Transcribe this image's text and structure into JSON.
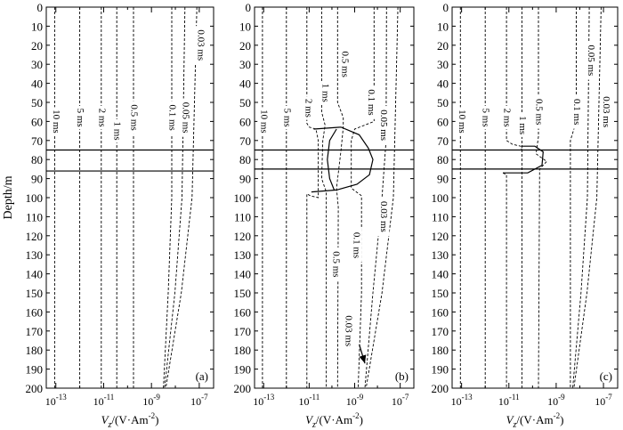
{
  "chart_data": {
    "y_axis": {
      "label": "Depth/m",
      "ylim": [
        0,
        200
      ],
      "inverted": true,
      "ticks": [
        0,
        10,
        20,
        30,
        40,
        50,
        60,
        70,
        80,
        90,
        100,
        110,
        120,
        130,
        140,
        150,
        160,
        170,
        180,
        190,
        200
      ]
    },
    "x_axis": {
      "label_main": "V",
      "label_sub": "z",
      "label_unit": "/(V·Am",
      "label_exp": "-2",
      "label_close": ")",
      "scale": "log",
      "xlim_exp": [
        -13.4,
        -6.4
      ],
      "tick_exps": [
        -13,
        -11,
        -9,
        -7
      ],
      "tick_base": "10"
    },
    "panels": [
      {
        "type": "line",
        "tag": "(a)",
        "layer_lines": [
          75,
          86
        ],
        "curves": [
          {
            "name": "10 ms",
            "style": "dashed",
            "points": [
              [
                -13.05,
                0
              ],
              [
                -13.05,
                200
              ]
            ]
          },
          {
            "name": "5 ms",
            "style": "dashed",
            "points": [
              [
                -12.0,
                0
              ],
              [
                -12.0,
                200
              ]
            ]
          },
          {
            "name": "2 ms",
            "style": "dashed",
            "points": [
              [
                -11.1,
                0
              ],
              [
                -11.1,
                200
              ]
            ]
          },
          {
            "name": "1 ms",
            "style": "dashed",
            "points": [
              [
                -10.45,
                0
              ],
              [
                -10.45,
                200
              ]
            ]
          },
          {
            "name": "0.5 ms",
            "style": "dashed",
            "points": [
              [
                -9.75,
                0
              ],
              [
                -9.75,
                200
              ]
            ]
          },
          {
            "name": "0.1 ms",
            "style": "dashed",
            "points": [
              [
                -8.15,
                0
              ],
              [
                -8.15,
                100
              ],
              [
                -8.3,
                150
              ],
              [
                -8.5,
                200
              ]
            ]
          },
          {
            "name": "0.05 ms",
            "style": "dashed",
            "points": [
              [
                -7.6,
                0
              ],
              [
                -7.72,
                100
              ],
              [
                -8.02,
                150
              ],
              [
                -8.45,
                200
              ]
            ]
          },
          {
            "name": "0.03 ms",
            "style": "dashed",
            "points": [
              [
                -7.1,
                0
              ],
              [
                -7.3,
                100
              ],
              [
                -7.75,
                150
              ],
              [
                -8.4,
                200
              ]
            ]
          }
        ],
        "labels": [
          {
            "text": "10 ms",
            "at": [
              -13.0,
              60
            ]
          },
          {
            "text": "5 ms",
            "at": [
              -12.0,
              58
            ]
          },
          {
            "text": "2 ms",
            "at": [
              -11.1,
              58
            ]
          },
          {
            "text": "1 ms",
            "at": [
              -10.45,
              65
            ]
          },
          {
            "text": "0.5 ms",
            "at": [
              -9.75,
              58
            ]
          },
          {
            "text": "0.1 ms",
            "at": [
              -8.15,
              58
            ]
          },
          {
            "text": "0.05 ms",
            "at": [
              -7.6,
              58
            ]
          },
          {
            "text": "0.03 ms",
            "at": [
              -6.95,
              20
            ]
          }
        ]
      },
      {
        "type": "line",
        "tag": "(b)",
        "layer_lines": [
          75,
          85
        ],
        "curves": [
          {
            "name": "10 ms",
            "style": "dashed",
            "points": [
              [
                -13.05,
                0
              ],
              [
                -13.05,
                200
              ]
            ]
          },
          {
            "name": "5 ms",
            "style": "dashed",
            "points": [
              [
                -12.0,
                0
              ],
              [
                -12.0,
                200
              ]
            ]
          },
          {
            "name": "2 ms",
            "style": "dashed",
            "points": [
              [
                -11.1,
                0
              ],
              [
                -11.1,
                61
              ],
              [
                -11.0,
                63
              ],
              [
                -10.7,
                64
              ],
              [
                -10.6,
                70
              ],
              [
                -10.6,
                100
              ],
              [
                -10.95,
                99
              ],
              [
                -11.1,
                98
              ],
              [
                -11.1,
                200
              ]
            ]
          },
          {
            "name": "1 ms",
            "style": "dashed",
            "points": [
              [
                -10.45,
                0
              ],
              [
                -10.45,
                55
              ],
              [
                -10.3,
                62
              ],
              [
                -10.4,
                70
              ],
              [
                -10.45,
                90
              ],
              [
                -10.25,
                97
              ],
              [
                -10.25,
                200
              ]
            ]
          },
          {
            "name": "0.5 ms",
            "style": "dashed",
            "points": [
              [
                -9.75,
                0
              ],
              [
                -9.75,
                50
              ],
              [
                -9.5,
                58
              ],
              [
                -9.5,
                63
              ],
              [
                -9.6,
                75
              ],
              [
                -9.8,
                95
              ],
              [
                -9.72,
                105
              ],
              [
                -9.75,
                200
              ]
            ]
          },
          {
            "name": "0.1 ms",
            "style": "dashed",
            "points": [
              [
                -8.15,
                0
              ],
              [
                -8.15,
                60
              ],
              [
                -9.0,
                64
              ],
              [
                -9.15,
                70
              ],
              [
                -9.15,
                95
              ],
              [
                -8.7,
                99
              ],
              [
                -8.7,
                150
              ],
              [
                -8.85,
                200
              ]
            ]
          },
          {
            "name": "0.05 ms",
            "style": "dashed",
            "points": [
              [
                -7.6,
                0
              ],
              [
                -7.62,
                70
              ],
              [
                -7.8,
                100
              ],
              [
                -8.2,
                150
              ],
              [
                -8.55,
                200
              ]
            ]
          },
          {
            "name": "0.03 ms",
            "style": "dashed",
            "points": [
              [
                -7.1,
                0
              ],
              [
                -7.3,
                100
              ],
              [
                -7.8,
                150
              ],
              [
                -8.5,
                200
              ]
            ]
          },
          {
            "name": "contour",
            "style": "solid",
            "points": [
              [
                -10.8,
                64
              ],
              [
                -9.6,
                63
              ],
              [
                -8.8,
                67
              ],
              [
                -8.4,
                74
              ],
              [
                -8.2,
                80
              ],
              [
                -8.35,
                88
              ],
              [
                -8.9,
                93
              ],
              [
                -9.8,
                96
              ],
              [
                -10.9,
                97
              ]
            ]
          },
          {
            "name": "contour",
            "style": "solid",
            "points": [
              [
                -9.8,
                64
              ],
              [
                -10.1,
                70
              ],
              [
                -10.2,
                80
              ],
              [
                -10.1,
                90
              ],
              [
                -9.9,
                96
              ]
            ]
          }
        ],
        "labels": [
          {
            "text": "10 ms",
            "at": [
              -13.0,
              60
            ]
          },
          {
            "text": "5 ms",
            "at": [
              -12.0,
              58
            ]
          },
          {
            "text": "2 ms",
            "at": [
              -11.05,
              53
            ]
          },
          {
            "text": "1 ms",
            "at": [
              -10.3,
              45
            ]
          },
          {
            "text": "0.5 ms",
            "at": [
              -9.45,
              30
            ]
          },
          {
            "text": "0.1 ms",
            "at": [
              -8.3,
              50
            ]
          },
          {
            "text": "0.05 ms",
            "at": [
              -7.75,
              62
            ]
          },
          {
            "text": "0.5 ms",
            "at": [
              -9.85,
              135
            ]
          },
          {
            "text": "0.1 ms",
            "at": [
              -8.95,
              125
            ]
          },
          {
            "text": "0.03 ms",
            "at": [
              -9.3,
              170
            ]
          },
          {
            "text": "0.03 ms",
            "at": [
              -7.75,
              110
            ]
          }
        ],
        "arrow": {
          "from": [
            -8.8,
            177
          ],
          "to": [
            -8.55,
            187
          ]
        }
      },
      {
        "type": "line",
        "tag": "(c)",
        "layer_lines": [
          75,
          85
        ],
        "curves": [
          {
            "name": "10 ms",
            "style": "dashed",
            "points": [
              [
                -13.05,
                0
              ],
              [
                -13.05,
                200
              ]
            ]
          },
          {
            "name": "5 ms",
            "style": "dashed",
            "points": [
              [
                -12.0,
                0
              ],
              [
                -12.0,
                200
              ]
            ]
          },
          {
            "name": "2 ms",
            "style": "dashed",
            "points": [
              [
                -11.1,
                0
              ],
              [
                -11.1,
                70
              ],
              [
                -10.85,
                72
              ],
              [
                -10.5,
                73
              ],
              [
                -10.45,
                75
              ]
            ]
          },
          {
            "name": "2 ms",
            "style": "dashed",
            "points": [
              [
                -11.25,
                87
              ],
              [
                -11.1,
                88
              ],
              [
                -11.1,
                200
              ]
            ]
          },
          {
            "name": "1 ms",
            "style": "dashed",
            "points": [
              [
                -10.45,
                0
              ],
              [
                -10.45,
                200
              ]
            ]
          },
          {
            "name": "0.5 ms",
            "style": "dashed",
            "points": [
              [
                -9.75,
                0
              ],
              [
                -9.75,
                68
              ],
              [
                -9.85,
                77
              ],
              [
                -9.4,
                81
              ],
              [
                -9.7,
                85
              ],
              [
                -9.75,
                200
              ]
            ]
          },
          {
            "name": "0.1 ms",
            "style": "dashed",
            "points": [
              [
                -8.15,
                0
              ],
              [
                -8.15,
                60
              ],
              [
                -8.4,
                70
              ],
              [
                -8.4,
                200
              ]
            ]
          },
          {
            "name": "0.05 ms",
            "style": "dashed",
            "points": [
              [
                -7.6,
                0
              ],
              [
                -7.68,
                100
              ],
              [
                -7.95,
                150
              ],
              [
                -8.3,
                200
              ]
            ]
          },
          {
            "name": "0.03 ms",
            "style": "dashed",
            "points": [
              [
                -7.1,
                0
              ],
              [
                -7.28,
                100
              ],
              [
                -7.7,
                150
              ],
              [
                -8.25,
                200
              ]
            ]
          },
          {
            "name": "contour",
            "style": "solid",
            "points": [
              [
                -10.45,
                73
              ],
              [
                -9.9,
                73
              ],
              [
                -9.55,
                76
              ],
              [
                -9.6,
                83
              ],
              [
                -10.2,
                87
              ],
              [
                -11.25,
                87
              ]
            ]
          }
        ],
        "labels": [
          {
            "text": "10 ms",
            "at": [
              -13.0,
              60
            ]
          },
          {
            "text": "5 ms",
            "at": [
              -12.0,
              58
            ]
          },
          {
            "text": "2 ms",
            "at": [
              -11.1,
              58
            ]
          },
          {
            "text": "1 ms",
            "at": [
              -10.45,
              62
            ]
          },
          {
            "text": "0.5 ms",
            "at": [
              -9.75,
              55
            ]
          },
          {
            "text": "0.1 ms",
            "at": [
              -8.15,
              55
            ]
          },
          {
            "text": "0.05 ms",
            "at": [
              -7.55,
              28
            ]
          },
          {
            "text": "0.03 ms",
            "at": [
              -6.9,
              55
            ]
          }
        ]
      }
    ]
  }
}
